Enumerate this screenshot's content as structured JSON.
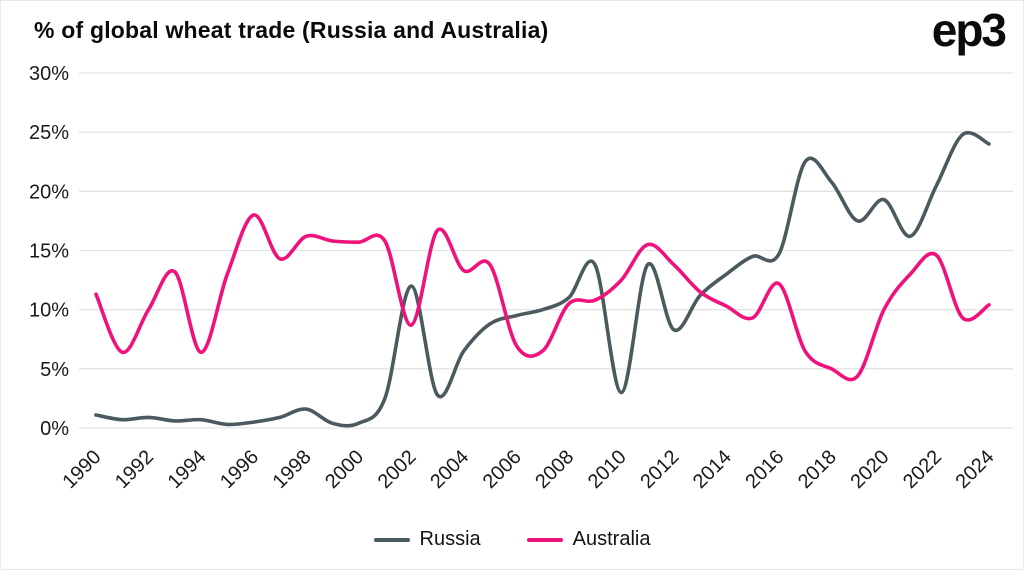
{
  "title": "% of global wheat trade (Russia and Australia)",
  "logo": "ep3",
  "chart_data": {
    "type": "line",
    "title": "% of global wheat trade (Russia and Australia)",
    "xlabel": "",
    "ylabel": "",
    "ylim": [
      0,
      30
    ],
    "yticks": [
      0,
      5,
      10,
      15,
      20,
      25,
      30
    ],
    "ytick_suffix": "%",
    "x_tick_step": 2,
    "grid": "horizontal",
    "legend_position": "bottom",
    "x": [
      1990,
      1991,
      1992,
      1993,
      1994,
      1995,
      1996,
      1997,
      1998,
      1999,
      2000,
      2001,
      2002,
      2003,
      2004,
      2005,
      2006,
      2007,
      2008,
      2009,
      2010,
      2011,
      2012,
      2013,
      2014,
      2015,
      2016,
      2017,
      2018,
      2019,
      2020,
      2021,
      2022,
      2023,
      2024
    ],
    "series": [
      {
        "name": "Russia",
        "color": "#4a5a5f",
        "values": [
          1.1,
          0.7,
          0.9,
          0.6,
          0.7,
          0.3,
          0.5,
          0.9,
          1.6,
          0.4,
          0.4,
          2.5,
          12.0,
          2.8,
          6.5,
          8.8,
          9.5,
          10.0,
          11.0,
          13.8,
          3.0,
          13.8,
          8.3,
          11.2,
          13.0,
          14.5,
          14.7,
          22.5,
          20.8,
          17.5,
          19.3,
          16.2,
          20.5,
          24.8,
          24.0
        ]
      },
      {
        "name": "Australia",
        "color": "#f0127b",
        "values": [
          11.3,
          6.4,
          10.0,
          13.2,
          6.4,
          13.0,
          18.0,
          14.3,
          16.2,
          15.8,
          15.7,
          15.8,
          8.7,
          16.7,
          13.3,
          13.8,
          7.0,
          6.5,
          10.5,
          10.8,
          12.5,
          15.5,
          13.8,
          11.5,
          10.3,
          9.3,
          12.2,
          6.5,
          5.0,
          4.4,
          10.0,
          13.0,
          14.6,
          9.3,
          10.4
        ]
      }
    ]
  }
}
